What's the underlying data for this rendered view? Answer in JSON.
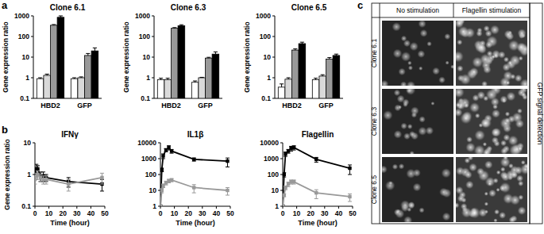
{
  "panel_labels": [
    "a",
    "b",
    "c"
  ],
  "chart_data": [
    {
      "type": "bar",
      "title": "Clone 6.1",
      "ylabel": "Gene expression ratio",
      "categories": [
        "HBD2",
        "GFP"
      ],
      "log": "y",
      "ylim": [
        0.1,
        1000
      ],
      "yticks": [
        0.1,
        1,
        10,
        100,
        1000
      ],
      "series": [
        {
          "color": "#ffffff",
          "values": [
            0.9,
            0.9
          ],
          "errors": [
            0.1,
            0.1
          ]
        },
        {
          "color": "#d9d9d9",
          "values": [
            1.3,
            1.0
          ],
          "errors": [
            0.2,
            0.1
          ]
        },
        {
          "color": "#999999",
          "values": [
            350,
            12
          ],
          "errors": [
            30,
            3
          ]
        },
        {
          "color": "#000000",
          "values": [
            850,
            20
          ],
          "errors": [
            150,
            8
          ]
        }
      ]
    },
    {
      "type": "bar",
      "title": "Clone 6.3",
      "ylabel": "Gene expression ratio",
      "categories": [
        "HBD2",
        "GFP"
      ],
      "log": "y",
      "ylim": [
        0.1,
        1000
      ],
      "yticks": [
        0.1,
        1,
        10,
        100,
        1000
      ],
      "series": [
        {
          "color": "#ffffff",
          "values": [
            0.8,
            0.6
          ],
          "errors": [
            0.15,
            0.1
          ]
        },
        {
          "color": "#d9d9d9",
          "values": [
            0.8,
            1.0
          ],
          "errors": [
            0.15,
            0.05
          ]
        },
        {
          "color": "#999999",
          "values": [
            250,
            9
          ],
          "errors": [
            20,
            0.8
          ]
        },
        {
          "color": "#000000",
          "values": [
            330,
            14
          ],
          "errors": [
            40,
            4
          ]
        }
      ]
    },
    {
      "type": "bar",
      "title": "Clone 6.5",
      "ylabel": "Gene expression ratio",
      "categories": [
        "HBD2",
        "GFP"
      ],
      "log": "y",
      "ylim": [
        0.1,
        1000
      ],
      "yticks": [
        0.1,
        1,
        10,
        100,
        1000
      ],
      "series": [
        {
          "color": "#ffffff",
          "values": [
            0.35,
            0.8
          ],
          "errors": [
            0.15,
            0.15
          ]
        },
        {
          "color": "#d9d9d9",
          "values": [
            0.85,
            1.2
          ],
          "errors": [
            0.15,
            0.2
          ]
        },
        {
          "color": "#999999",
          "values": [
            22,
            8
          ],
          "errors": [
            3,
            1.5
          ]
        },
        {
          "color": "#000000",
          "values": [
            45,
            12
          ],
          "errors": [
            8,
            2
          ]
        }
      ]
    },
    {
      "type": "line",
      "title": "IFNγ",
      "ylabel": "Gene expression ratio",
      "xlabel": "Time (hour)",
      "x": [
        0,
        1,
        2,
        4,
        6,
        8,
        24,
        48
      ],
      "xlim": [
        0,
        50
      ],
      "xticks": [
        0,
        10,
        20,
        30,
        40,
        50
      ],
      "log": "y",
      "ylim": [
        0.1,
        10
      ],
      "yticks": [
        0.1,
        1,
        10
      ],
      "series": [
        {
          "color": "#000000",
          "marker": "square",
          "values": [
            1,
            1.5,
            1.5,
            0.9,
            0.9,
            0.8,
            0.6,
            0.5
          ],
          "errors": [
            0.3,
            0.6,
            0.4,
            0.3,
            0.3,
            0.2,
            0.2,
            0.2
          ]
        },
        {
          "color": "#999999",
          "marker": "square",
          "values": [
            0.7,
            0.9,
            1.0,
            0.8,
            0.7,
            0.7,
            0.5,
            0.8
          ],
          "errors": [
            0.2,
            0.2,
            0.3,
            0.2,
            0.2,
            0.2,
            0.2,
            0.3
          ]
        }
      ]
    },
    {
      "type": "line",
      "title": "IL1β",
      "xlabel": "Time (hour)",
      "x": [
        0,
        1,
        2,
        4,
        6,
        8,
        24,
        48
      ],
      "xlim": [
        0,
        50
      ],
      "xticks": [
        0,
        10,
        20,
        30,
        40,
        50
      ],
      "log": "y",
      "ylim": [
        1,
        10000
      ],
      "yticks": [
        1,
        10,
        100,
        1000,
        10000
      ],
      "series": [
        {
          "color": "#000000",
          "marker": "square",
          "values": [
            1,
            200,
            1500,
            3500,
            5000,
            3000,
            900,
            700
          ],
          "errors": [
            0.2,
            50,
            500,
            800,
            1500,
            800,
            200,
            400
          ]
        },
        {
          "color": "#999999",
          "marker": "square",
          "values": [
            1,
            10,
            20,
            30,
            40,
            45,
            15,
            10
          ],
          "errors": [
            0.2,
            3,
            5,
            8,
            10,
            10,
            8,
            5
          ]
        }
      ]
    },
    {
      "type": "line",
      "title": "Flagellin",
      "xlabel": "Time (hour)",
      "x": [
        0,
        1,
        2,
        4,
        6,
        8,
        24,
        48
      ],
      "xlim": [
        0,
        50
      ],
      "xticks": [
        0,
        10,
        20,
        30,
        40,
        50
      ],
      "log": "y",
      "ylim": [
        1,
        10000
      ],
      "yticks": [
        1,
        10,
        100,
        1000,
        10000
      ],
      "series": [
        {
          "color": "#000000",
          "marker": "square",
          "values": [
            1,
            100,
            2000,
            3000,
            4500,
            5000,
            900,
            250
          ],
          "errors": [
            0.2,
            30,
            600,
            800,
            1500,
            1500,
            300,
            150
          ]
        },
        {
          "color": "#999999",
          "marker": "square",
          "values": [
            1,
            5,
            15,
            25,
            35,
            35,
            7,
            4
          ],
          "errors": [
            0.2,
            1,
            4,
            8,
            10,
            10,
            4,
            2
          ]
        }
      ]
    }
  ],
  "image_panel": {
    "columns": [
      "No stimulation",
      "Flagellin stimulation"
    ],
    "rows": [
      "Clone 6.1",
      "Clone 6.3",
      "Clone 6.5"
    ],
    "side_label": "GFP signal detection"
  }
}
